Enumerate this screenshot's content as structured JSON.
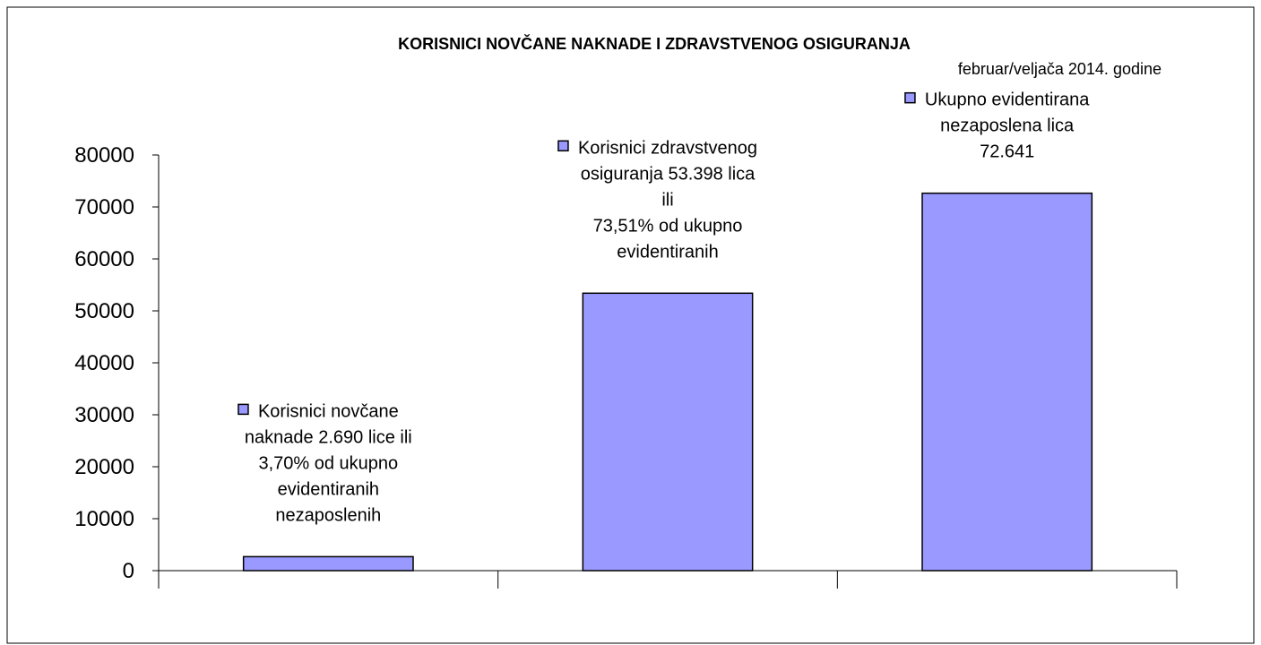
{
  "chart_data": {
    "type": "bar",
    "title": "KORISNICI NOVČANE NAKNADE I ZDRAVSTVENOG OSIGURANJA",
    "subtitle": "februar/veljača 2014. godine",
    "categories": [
      "Korisnici novčane\nnaknade 2.690 lice ili\n3,70% od ukupno\nevidentiranih\nnezaposlenih",
      "Korisnici zdravstvenog\nosiguranja 53.398 lica\nili\n73,51% od ukupno\nevidentiranih",
      "Ukupno evidentirana\nnezaposlena lica\n72.641"
    ],
    "values": [
      2690,
      53398,
      72641
    ],
    "color": "#9999ff",
    "ylim": [
      0,
      80000
    ],
    "yticks": [
      0,
      10000,
      20000,
      30000,
      40000,
      50000,
      60000,
      70000,
      80000
    ],
    "grid": false
  }
}
